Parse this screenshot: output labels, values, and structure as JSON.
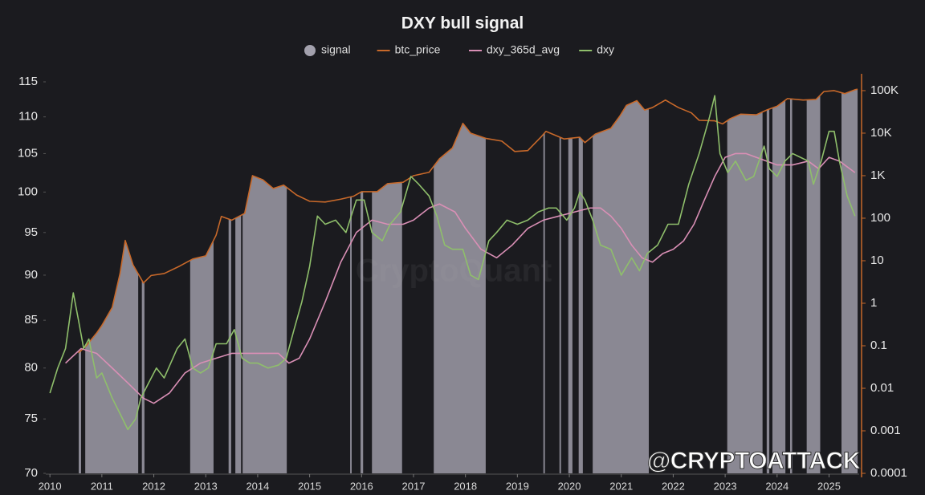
{
  "chart_data": {
    "type": "line",
    "title": "DXY bull signal",
    "watermark": "CryptoQuant",
    "annotation": "@CRYPTOATTACK",
    "xlim": [
      2009.92,
      2025.58
    ],
    "xticks": [
      2010,
      2011,
      2012,
      2013,
      2014,
      2015,
      2016,
      2017,
      2018,
      2019,
      2020,
      2021,
      2022,
      2023,
      2024,
      2025
    ],
    "ylim": [
      70,
      115
    ],
    "ylog": true,
    "yticks": [
      70,
      75,
      80,
      85,
      90,
      95,
      100,
      105,
      110,
      115
    ],
    "y2lim": [
      0.0001,
      161000
    ],
    "y2log": true,
    "y2ticks": [
      {
        "value": 100000,
        "label": "100K"
      },
      {
        "value": 10000,
        "label": "10K"
      },
      {
        "value": 1000,
        "label": "1K"
      },
      100,
      10,
      1,
      0.1,
      0.01,
      0.001,
      0.0001
    ],
    "y2_axis_color": "#c8692a",
    "grid": false,
    "series": [
      {
        "name": "signal",
        "color": "#a3a1ad",
        "intervals": [
          [
            2010.554,
            2010.6
          ],
          [
            2010.68,
            2011.7
          ],
          [
            2011.77,
            2011.82
          ],
          [
            2012.7,
            2013.15
          ],
          [
            2013.44,
            2013.49
          ],
          [
            2013.57,
            2013.68
          ],
          [
            2013.71,
            2014.56
          ],
          [
            2015.78,
            2015.81
          ],
          [
            2015.98,
            2016.03
          ],
          [
            2016.2,
            2016.78
          ],
          [
            2017.39,
            2018.39
          ],
          [
            2019.5,
            2019.53
          ],
          [
            2019.81,
            2019.84
          ],
          [
            2019.98,
            2020.06
          ],
          [
            2020.18,
            2020.26
          ],
          [
            2020.45,
            2021.53
          ],
          [
            2023.04,
            2023.72
          ],
          [
            2023.8,
            2023.85
          ],
          [
            2023.91,
            2024.16
          ],
          [
            2024.25,
            2024.29
          ],
          [
            2024.57,
            2024.83
          ],
          [
            2025.24,
            2025.55
          ]
        ]
      },
      {
        "name": "btc_price",
        "color": "#c8692a",
        "axis": "y2",
        "x": [
          2010.55,
          2010.7,
          2010.9,
          2011.0,
          2011.2,
          2011.35,
          2011.45,
          2011.6,
          2011.8,
          2011.95,
          2012.2,
          2012.5,
          2012.75,
          2013.0,
          2013.2,
          2013.3,
          2013.5,
          2013.75,
          2013.9,
          2014.1,
          2014.3,
          2014.5,
          2014.75,
          2015.0,
          2015.3,
          2015.6,
          2015.85,
          2016.0,
          2016.3,
          2016.5,
          2016.8,
          2017.0,
          2017.3,
          2017.5,
          2017.75,
          2017.95,
          2018.1,
          2018.4,
          2018.7,
          2018.95,
          2019.2,
          2019.45,
          2019.55,
          2019.9,
          2020.2,
          2020.3,
          2020.5,
          2020.8,
          2020.97,
          2021.1,
          2021.3,
          2021.45,
          2021.6,
          2021.85,
          2022.1,
          2022.35,
          2022.5,
          2022.8,
          2022.95,
          2023.1,
          2023.3,
          2023.6,
          2023.8,
          2024.0,
          2024.2,
          2024.5,
          2024.75,
          2024.9,
          2025.1,
          2025.3,
          2025.5,
          2025.55
        ],
        "values": [
          0.068,
          0.1,
          0.2,
          0.3,
          0.8,
          5,
          30,
          8,
          3,
          4.5,
          5,
          7.5,
          11,
          13,
          40,
          110,
          90,
          130,
          1000,
          800,
          500,
          600,
          350,
          250,
          240,
          280,
          330,
          420,
          420,
          650,
          700,
          1000,
          1200,
          2500,
          4500,
          17000,
          10000,
          7500,
          6500,
          3700,
          3900,
          8000,
          11000,
          7300,
          8000,
          6000,
          9500,
          13000,
          25000,
          45000,
          58000,
          35000,
          40000,
          60000,
          40000,
          30000,
          20000,
          19500,
          16500,
          22000,
          28000,
          27000,
          35000,
          43000,
          65000,
          60000,
          62000,
          95000,
          100000,
          85000,
          105000,
          108000
        ]
      },
      {
        "name": "dxy_365d_avg",
        "color": "#d98fb5",
        "x": [
          2010.3,
          2010.6,
          2010.9,
          2011.2,
          2011.5,
          2011.8,
          2012.0,
          2012.3,
          2012.6,
          2012.9,
          2013.2,
          2013.5,
          2013.8,
          2014.1,
          2014.4,
          2014.6,
          2014.8,
          2015.0,
          2015.3,
          2015.6,
          2015.9,
          2016.2,
          2016.5,
          2016.8,
          2017.0,
          2017.3,
          2017.5,
          2017.8,
          2018.0,
          2018.3,
          2018.6,
          2018.9,
          2019.2,
          2019.5,
          2019.8,
          2020.1,
          2020.4,
          2020.6,
          2020.8,
          2021.0,
          2021.2,
          2021.4,
          2021.6,
          2021.8,
          2022.0,
          2022.2,
          2022.4,
          2022.6,
          2022.8,
          2023.0,
          2023.2,
          2023.4,
          2023.6,
          2023.8,
          2024.0,
          2024.3,
          2024.6,
          2024.8,
          2025.0,
          2025.2,
          2025.5
        ],
        "values": [
          80.5,
          82,
          81.5,
          80,
          78.5,
          77,
          76.5,
          77.5,
          79.5,
          80.5,
          81,
          81.5,
          81.5,
          81.5,
          81.5,
          80.5,
          81,
          83,
          87,
          91.5,
          95,
          96.5,
          96,
          96,
          96.5,
          98,
          98.5,
          97.5,
          95.5,
          93,
          92,
          93.5,
          95.5,
          96.5,
          97,
          97.5,
          98,
          98,
          97,
          95.5,
          93.5,
          92,
          91.5,
          92.5,
          93,
          94,
          96,
          99,
          102,
          104.5,
          105,
          105,
          104.5,
          104,
          103.5,
          103.5,
          104,
          103,
          104.5,
          104,
          102.5
        ]
      },
      {
        "name": "dxy",
        "color": "#8fbf6b",
        "x": [
          2010.0,
          2010.15,
          2010.3,
          2010.45,
          2010.55,
          2010.65,
          2010.75,
          2010.9,
          2011.0,
          2011.2,
          2011.35,
          2011.5,
          2011.65,
          2011.75,
          2011.9,
          2012.05,
          2012.2,
          2012.45,
          2012.6,
          2012.75,
          2012.9,
          2013.05,
          2013.2,
          2013.4,
          2013.55,
          2013.7,
          2013.85,
          2014.0,
          2014.2,
          2014.4,
          2014.55,
          2014.7,
          2014.85,
          2015.0,
          2015.15,
          2015.3,
          2015.5,
          2015.7,
          2015.9,
          2016.05,
          2016.2,
          2016.4,
          2016.55,
          2016.75,
          2016.95,
          2017.1,
          2017.3,
          2017.45,
          2017.6,
          2017.75,
          2017.95,
          2018.1,
          2018.25,
          2018.45,
          2018.6,
          2018.8,
          2019.0,
          2019.2,
          2019.4,
          2019.6,
          2019.75,
          2019.95,
          2020.1,
          2020.2,
          2020.3,
          2020.45,
          2020.6,
          2020.8,
          2021.0,
          2021.2,
          2021.35,
          2021.5,
          2021.7,
          2021.9,
          2022.1,
          2022.3,
          2022.5,
          2022.7,
          2022.8,
          2022.9,
          2023.05,
          2023.2,
          2023.4,
          2023.55,
          2023.75,
          2023.85,
          2024.0,
          2024.15,
          2024.3,
          2024.45,
          2024.6,
          2024.7,
          2024.85,
          2025.0,
          2025.1,
          2025.2,
          2025.35,
          2025.5
        ],
        "values": [
          77.5,
          80,
          82,
          88,
          85,
          82,
          83,
          79,
          79.5,
          77,
          75.5,
          74,
          75,
          77,
          78.5,
          80,
          79,
          82,
          83,
          80,
          79.5,
          80,
          82.5,
          82.5,
          84,
          81,
          80.5,
          80.5,
          80,
          80.3,
          81,
          84,
          87,
          91,
          97,
          96,
          96.5,
          95,
          99,
          99,
          95,
          94,
          96,
          97.5,
          102,
          101,
          99.5,
          97,
          93.5,
          93,
          93,
          90,
          89.5,
          94,
          95,
          96.5,
          96,
          96.5,
          97.5,
          98,
          98,
          96.5,
          98,
          100,
          99,
          96.5,
          93.5,
          93,
          90,
          92,
          90.5,
          92.5,
          93.5,
          96,
          96,
          101,
          105,
          110,
          113,
          105,
          102.5,
          104,
          101.5,
          102,
          106,
          103,
          102,
          104,
          105,
          104.5,
          104,
          101,
          104,
          108,
          108,
          104,
          99.5,
          97
        ]
      }
    ]
  }
}
